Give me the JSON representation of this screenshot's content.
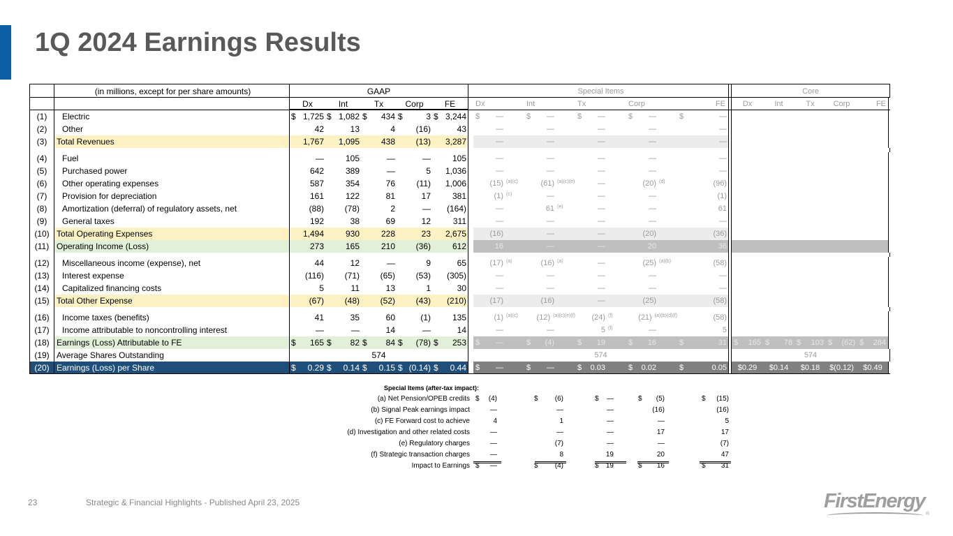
{
  "title": "1Q 2024 Earnings Results",
  "header": {
    "caption": "(in millions, except for per share amounts)",
    "gaap": "GAAP",
    "special": "Special Items",
    "core": "Core",
    "cols": [
      "Dx",
      "Int",
      "Tx",
      "Corp",
      "FE"
    ]
  },
  "rows": [
    {
      "num": "(1)",
      "label": "Electric",
      "ind": true,
      "style": "",
      "gd": true,
      "gaap": [
        "1,725",
        "1,082",
        "434",
        "3",
        "3,244"
      ],
      "sd": true,
      "special": [
        [
          "—",
          ""
        ],
        [
          "—",
          ""
        ],
        [
          "—",
          ""
        ],
        [
          "—",
          ""
        ],
        [
          "—",
          ""
        ]
      ],
      "core": null
    },
    {
      "num": "(2)",
      "label": "Other",
      "ind": true,
      "style": "",
      "gaap": [
        "42",
        "13",
        "4",
        "(16)",
        "43"
      ],
      "special": [
        [
          "—",
          ""
        ],
        [
          "—",
          ""
        ],
        [
          "—",
          ""
        ],
        [
          "—",
          ""
        ],
        [
          "—",
          ""
        ]
      ],
      "core": null
    },
    {
      "num": "(3)",
      "label": "Total Revenues",
      "style": "yellow",
      "gaap": [
        "1,767",
        "1,095",
        "438",
        "(13)",
        "3,287"
      ],
      "special": [
        [
          "—",
          ""
        ],
        [
          "—",
          ""
        ],
        [
          "—",
          ""
        ],
        [
          "—",
          ""
        ],
        [
          "—",
          ""
        ]
      ],
      "core": null,
      "gapAfter": true
    },
    {
      "num": "(4)",
      "label": "Fuel",
      "ind": true,
      "style": "",
      "gaap": [
        "—",
        "105",
        "—",
        "—",
        "105"
      ],
      "special": [
        [
          "—",
          ""
        ],
        [
          "—",
          ""
        ],
        [
          "—",
          ""
        ],
        [
          "—",
          ""
        ],
        [
          "—",
          ""
        ]
      ],
      "core": null
    },
    {
      "num": "(5)",
      "label": "Purchased power",
      "ind": true,
      "style": "",
      "gaap": [
        "642",
        "389",
        "—",
        "5",
        "1,036"
      ],
      "special": [
        [
          "—",
          ""
        ],
        [
          "—",
          ""
        ],
        [
          "—",
          ""
        ],
        [
          "—",
          ""
        ],
        [
          "—",
          ""
        ]
      ],
      "core": null
    },
    {
      "num": "(6)",
      "label": "Other operating expenses",
      "ind": true,
      "style": "",
      "gaap": [
        "587",
        "354",
        "76",
        "(11)",
        "1,006"
      ],
      "special": [
        [
          "(15)",
          "(a)(c)"
        ],
        [
          "(61)",
          "(a)(c)(e)"
        ],
        [
          "—",
          ""
        ],
        [
          "(20)",
          "(d)"
        ],
        [
          "(96)",
          ""
        ]
      ],
      "core": null
    },
    {
      "num": "(7)",
      "label": "Provision for depreciation",
      "ind": true,
      "style": "",
      "gaap": [
        "161",
        "122",
        "81",
        "17",
        "381"
      ],
      "special": [
        [
          "(1)",
          "(c)"
        ],
        [
          "—",
          ""
        ],
        [
          "—",
          ""
        ],
        [
          "—",
          ""
        ],
        [
          "(1)",
          ""
        ]
      ],
      "core": null
    },
    {
      "num": "(8)",
      "label": "Amortization (deferral) of regulatory assets, net",
      "ind": true,
      "style": "",
      "gaap": [
        "(88)",
        "(78)",
        "2",
        "—",
        "(164)"
      ],
      "special": [
        [
          "—",
          ""
        ],
        [
          "61",
          "(e)"
        ],
        [
          "—",
          ""
        ],
        [
          "—",
          ""
        ],
        [
          "61",
          ""
        ]
      ],
      "core": null
    },
    {
      "num": "(9)",
      "label": "General taxes",
      "ind": true,
      "style": "",
      "gaap": [
        "192",
        "38",
        "69",
        "12",
        "311"
      ],
      "special": [
        [
          "—",
          ""
        ],
        [
          "—",
          ""
        ],
        [
          "—",
          ""
        ],
        [
          "—",
          ""
        ],
        [
          "—",
          ""
        ]
      ],
      "core": null
    },
    {
      "num": "(10)",
      "label": "Total Operating Expenses",
      "style": "yellow",
      "gaap": [
        "1,494",
        "930",
        "228",
        "23",
        "2,675"
      ],
      "special": [
        [
          "(16)",
          ""
        ],
        [
          "—",
          ""
        ],
        [
          "—",
          ""
        ],
        [
          "(20)",
          ""
        ],
        [
          "(36)",
          ""
        ]
      ],
      "core": null
    },
    {
      "num": "(11)",
      "label": "Operating Income (Loss)",
      "style": "green",
      "gaap": [
        "273",
        "165",
        "210",
        "(36)",
        "612"
      ],
      "special": [
        [
          "16",
          ""
        ],
        [
          "—",
          ""
        ],
        [
          "—",
          ""
        ],
        [
          "20",
          ""
        ],
        [
          "36",
          ""
        ]
      ],
      "core": null,
      "gapAfter": true
    },
    {
      "num": "(12)",
      "label": "Miscellaneous income (expense), net",
      "ind": true,
      "style": "",
      "gaap": [
        "44",
        "12",
        "—",
        "9",
        "65"
      ],
      "special": [
        [
          "(17)",
          "(a)"
        ],
        [
          "(16)",
          "(a)"
        ],
        [
          "—",
          ""
        ],
        [
          "(25)",
          "(a)(b)"
        ],
        [
          "(58)",
          ""
        ]
      ],
      "core": null
    },
    {
      "num": "(13)",
      "label": "Interest expense",
      "ind": true,
      "style": "",
      "gaap": [
        "(116)",
        "(71)",
        "(65)",
        "(53)",
        "(305)"
      ],
      "special": [
        [
          "—",
          ""
        ],
        [
          "—",
          ""
        ],
        [
          "—",
          ""
        ],
        [
          "—",
          ""
        ],
        [
          "—",
          ""
        ]
      ],
      "core": null
    },
    {
      "num": "(14)",
      "label": "Capitalized financing costs",
      "ind": true,
      "style": "",
      "gaap": [
        "5",
        "11",
        "13",
        "1",
        "30"
      ],
      "special": [
        [
          "—",
          ""
        ],
        [
          "—",
          ""
        ],
        [
          "—",
          ""
        ],
        [
          "—",
          ""
        ],
        [
          "—",
          ""
        ]
      ],
      "core": null
    },
    {
      "num": "(15)",
      "label": "Total Other Expense",
      "style": "yellow",
      "gaap": [
        "(67)",
        "(48)",
        "(52)",
        "(43)",
        "(210)"
      ],
      "special": [
        [
          "(17)",
          ""
        ],
        [
          "(16)",
          ""
        ],
        [
          "—",
          ""
        ],
        [
          "(25)",
          ""
        ],
        [
          "(58)",
          ""
        ]
      ],
      "core": null,
      "gapAfter": true
    },
    {
      "num": "(16)",
      "label": "Income taxes (benefits)",
      "ind": true,
      "style": "",
      "gaap": [
        "41",
        "35",
        "60",
        "(1)",
        "135"
      ],
      "special": [
        [
          "(1)",
          "(a)(c)"
        ],
        [
          "(12)",
          "(a)(c)(e)(f)"
        ],
        [
          "(24)",
          "(f)"
        ],
        [
          "(21)",
          "(a)(b)(d)(f)"
        ],
        [
          "(58)",
          ""
        ]
      ],
      "core": null
    },
    {
      "num": "(17)",
      "label": "Income attributable to noncontrolling interest",
      "ind": true,
      "style": "",
      "gaap": [
        "—",
        "—",
        "14",
        "—",
        "14"
      ],
      "special": [
        [
          "—",
          ""
        ],
        [
          "—",
          ""
        ],
        [
          "5",
          "(f)"
        ],
        [
          "—",
          ""
        ],
        [
          "5",
          ""
        ]
      ],
      "core": null
    },
    {
      "num": "(18)",
      "label": "Earnings (Loss) Attributable to FE",
      "style": "green",
      "gd": true,
      "gaap": [
        "165",
        "82",
        "84",
        "(78)",
        "253"
      ],
      "sd": true,
      "special": [
        [
          "—",
          ""
        ],
        [
          "(4)",
          ""
        ],
        [
          "19",
          ""
        ],
        [
          "16",
          ""
        ],
        [
          "31",
          ""
        ]
      ],
      "kd": true,
      "core": [
        "165",
        "78",
        "103",
        "(62)",
        "284"
      ]
    },
    {
      "num": "(19)",
      "label": "Average Shares Outstanding",
      "style": "",
      "spanGaap": "574",
      "spanSpecial": "574",
      "spanCore": "574"
    },
    {
      "num": "(20)",
      "label": "Earnings (Loss) per Share",
      "style": "navy",
      "gd": true,
      "gaap": [
        "0.29",
        "0.14",
        "0.15",
        "(0.14)",
        "0.44"
      ],
      "sd": true,
      "special": [
        [
          "—",
          ""
        ],
        [
          "—",
          ""
        ],
        [
          "0.03",
          ""
        ],
        [
          "0.02",
          ""
        ],
        [
          "0.05",
          ""
        ]
      ],
      "core": [
        "$0.29",
        "$0.14",
        "$0.18",
        "$(0.12)",
        "$0.49"
      ]
    }
  ],
  "footnotes": {
    "heading": "Special Items (after-tax impact):",
    "items": [
      {
        "label": "(a) Net Pension/OPEB credits",
        "dollar": true,
        "values": [
          "(4)",
          "(6)",
          "—",
          "(5)",
          "(15)"
        ]
      },
      {
        "label": "(b) Signal Peak earnings impact",
        "values": [
          "—",
          "—",
          "—",
          "(16)",
          "(16)"
        ]
      },
      {
        "label": "(c) FE Forward cost to achieve",
        "values": [
          "4",
          "1",
          "—",
          "—",
          "5"
        ]
      },
      {
        "label": "(d) Investigation and other related costs",
        "values": [
          "—",
          "—",
          "—",
          "17",
          "17"
        ]
      },
      {
        "label": "(e) Regulatory charges",
        "values": [
          "—",
          "(7)",
          "—",
          "—",
          "(7)"
        ]
      },
      {
        "label": "(f) Strategic transaction charges",
        "values": [
          "—",
          "8",
          "19",
          "20",
          "47"
        ]
      },
      {
        "label": "Impact to Earnings",
        "dollar": true,
        "values": [
          "—",
          "(4)",
          "19",
          "16",
          "31"
        ]
      }
    ]
  },
  "footer": {
    "page": "23",
    "subtitle": "Strategic & Financial Highlights - Published April 23, 2025",
    "logo": "FirstEnergy",
    "reg": "®"
  },
  "colors": {
    "accent": "#0b5fa5",
    "navy": "#1f4e79",
    "yellow": "#fdf2c4",
    "green": "#e2efd9"
  }
}
